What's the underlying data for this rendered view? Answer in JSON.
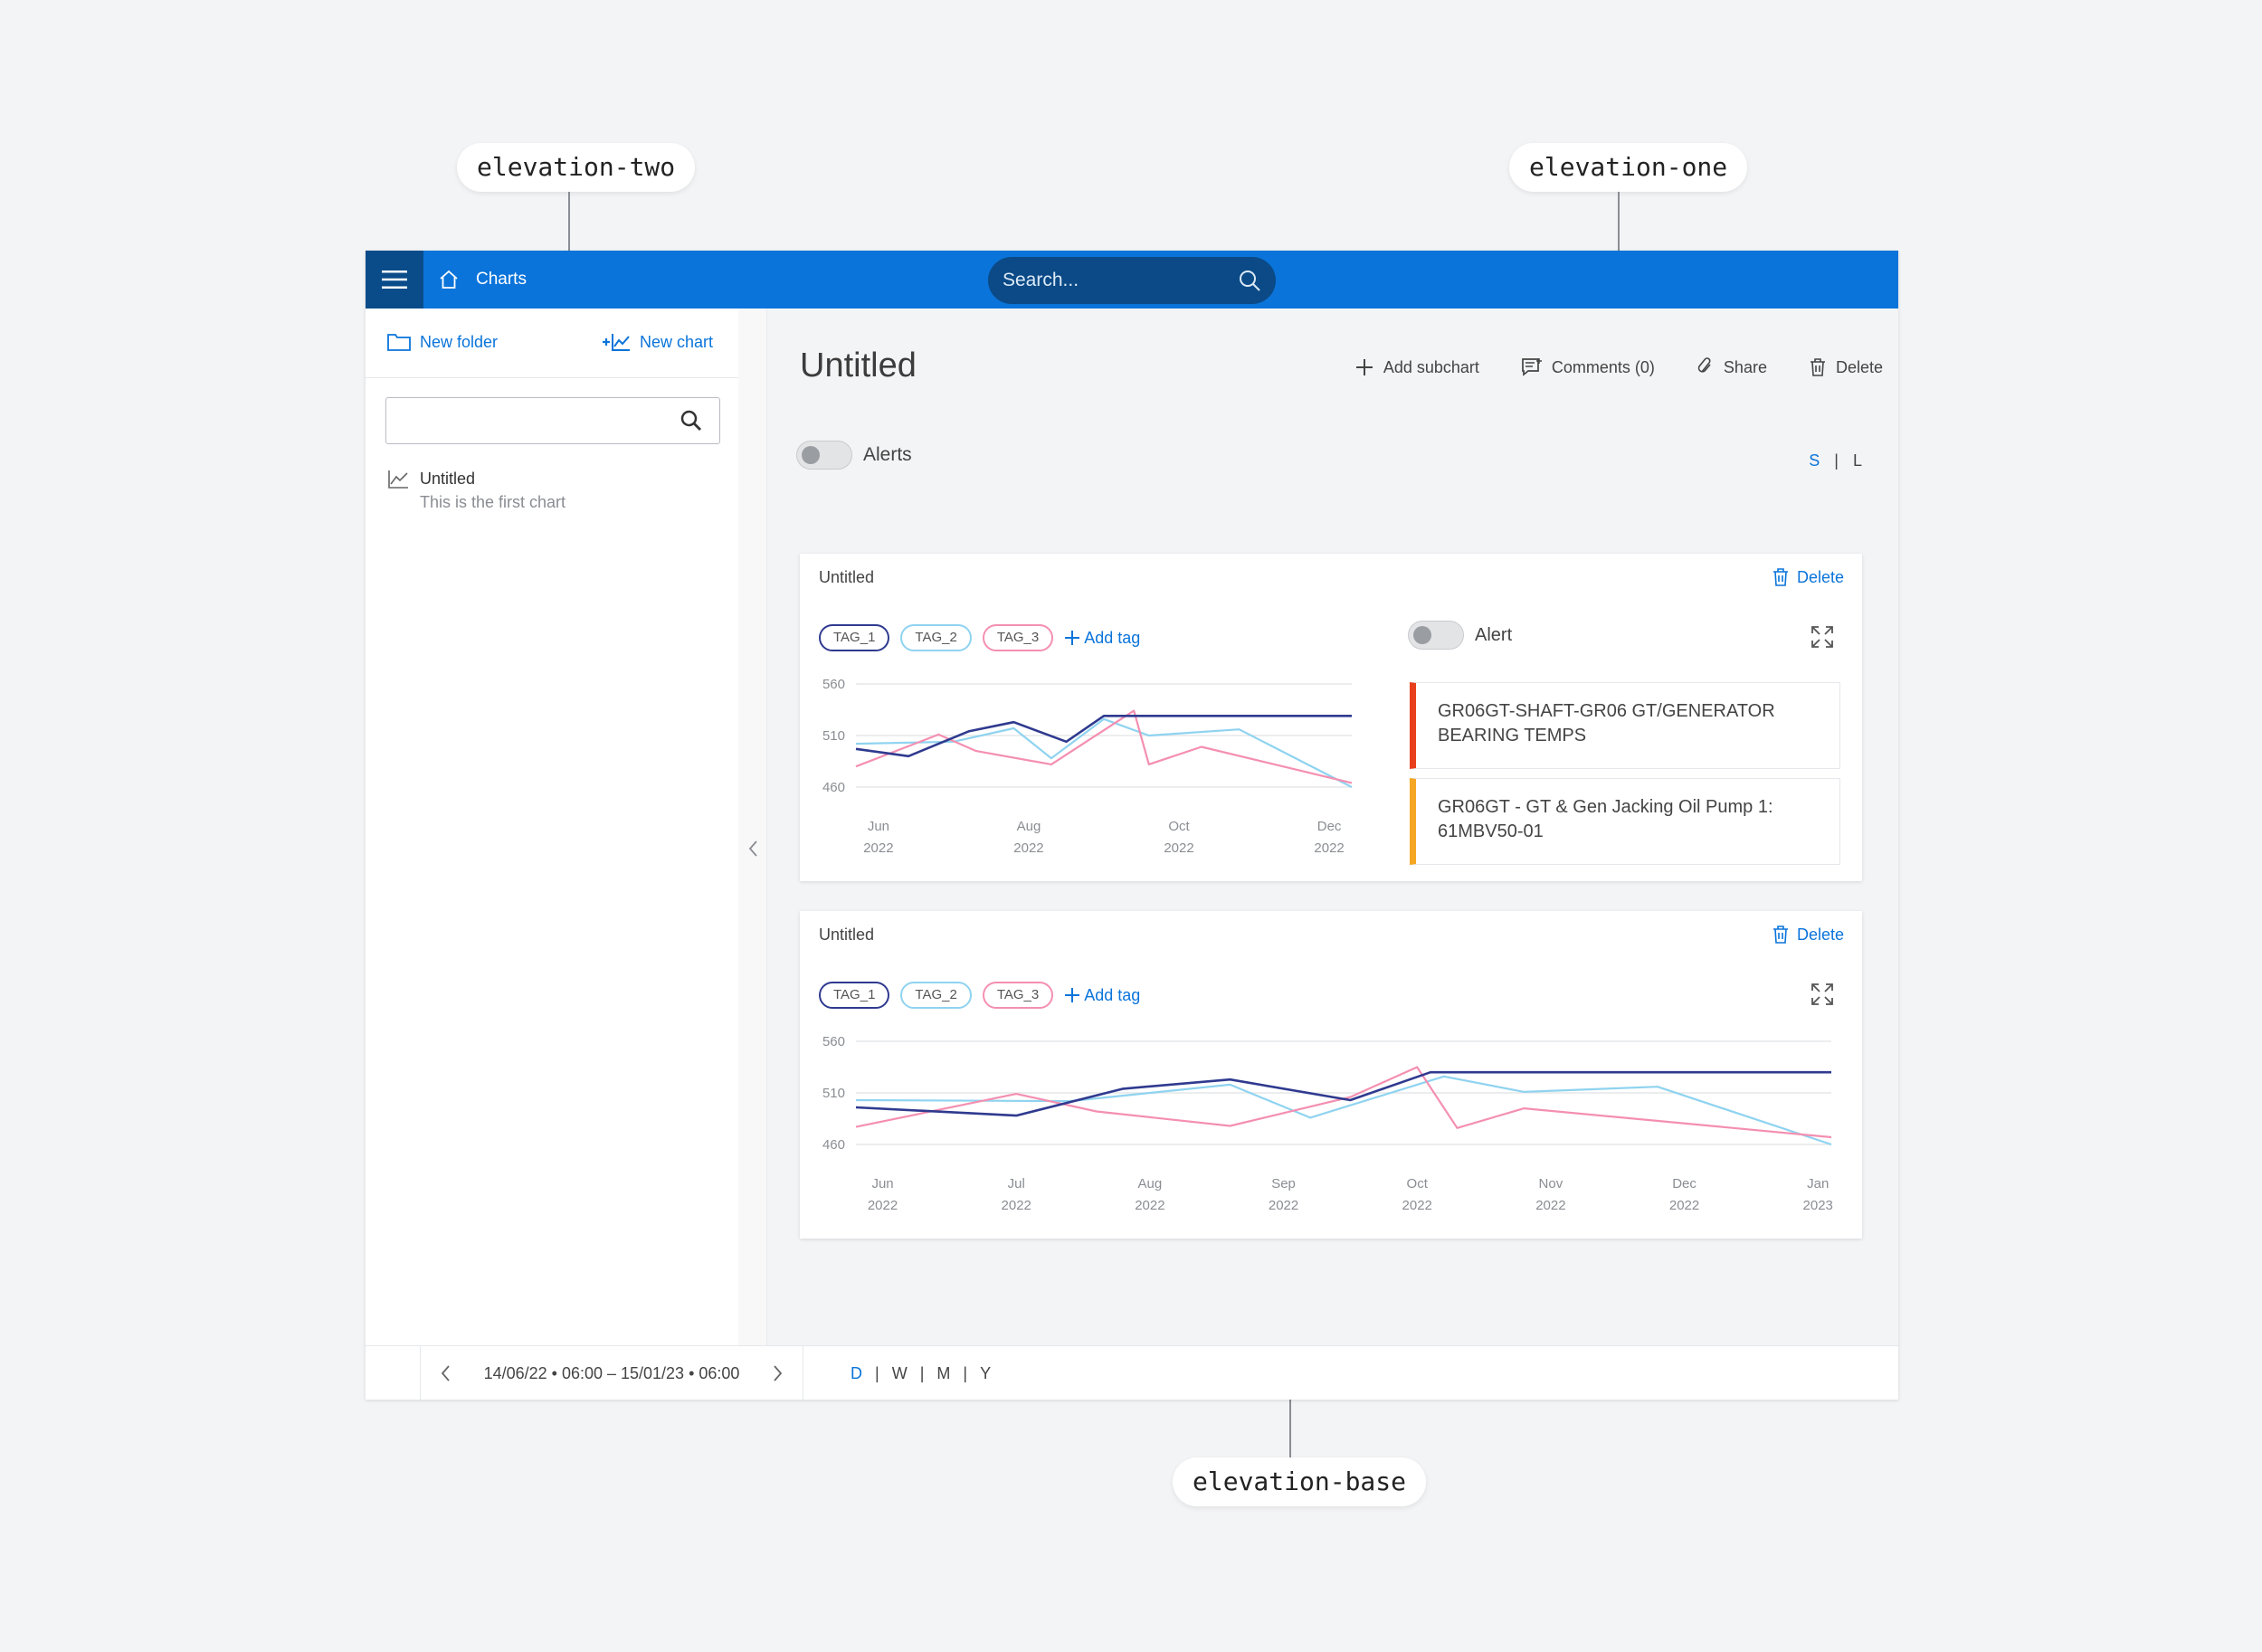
{
  "callouts": {
    "top_left": "elevation-two",
    "top_right": "elevation-one",
    "bottom": "elevation-base"
  },
  "header": {
    "breadcrumb": "Charts",
    "search_placeholder": "Search..."
  },
  "sidebar": {
    "new_folder": "New folder",
    "new_chart": "New chart",
    "items": [
      {
        "title": "Untitled",
        "subtitle": "This is the first chart"
      }
    ]
  },
  "main": {
    "title": "Untitled",
    "toolbar": {
      "add_subchart": "Add subchart",
      "comments": "Comments (0)",
      "share": "Share",
      "delete": "Delete"
    },
    "alerts_label": "Alerts",
    "size_options": [
      "S",
      "|",
      "L"
    ],
    "size_selected": "S"
  },
  "cards": [
    {
      "title": "Untitled",
      "delete_label": "Delete",
      "tags": [
        "TAG_1",
        "TAG_2",
        "TAG_3"
      ],
      "add_tag": "Add tag",
      "alert_label": "Alert",
      "alerts": [
        {
          "line1": "GR06GT-SHAFT-GR06 GT/GENERATOR",
          "line2": "BEARING TEMPS",
          "color": "#e8401c"
        },
        {
          "line1": "GR06GT - GT & Gen Jacking Oil Pump 1:",
          "line2": "61MBV50-01",
          "color": "#f5a623"
        }
      ]
    },
    {
      "title": "Untitled",
      "delete_label": "Delete",
      "tags": [
        "TAG_1",
        "TAG_2",
        "TAG_3"
      ],
      "add_tag": "Add tag"
    }
  ],
  "bottom": {
    "range": "14/06/22 • 06:00 – 15/01/23 • 06:00",
    "granularity": [
      "D",
      "|",
      "W",
      "|",
      "M",
      "|",
      "Y"
    ],
    "granularity_selected": "D"
  },
  "colors": {
    "primary": "#0a74da",
    "tag_1": "#2f3a8f",
    "tag_2": "#8fd3f0",
    "tag_3": "#f48fb1"
  },
  "chart_data": [
    {
      "type": "line",
      "y_ticks": [
        "560",
        "510",
        "460"
      ],
      "ylim": [
        460,
        560
      ],
      "x_ticks": [
        [
          "Jun",
          "2022"
        ],
        [
          "Aug",
          "2022"
        ],
        [
          "Oct",
          "2022"
        ],
        [
          "Dec",
          "2022"
        ]
      ],
      "x_positions": [
        0,
        2,
        4,
        6
      ],
      "xlim": [
        -0.3,
        6.3
      ],
      "series": [
        {
          "name": "TAG_1",
          "x": [
            -0.3,
            0.4,
            1.2,
            1.8,
            2.5,
            3.0,
            6.3
          ],
          "values": [
            497,
            490,
            514,
            523,
            504,
            529,
            529
          ]
        },
        {
          "name": "TAG_2",
          "x": [
            -0.3,
            1.0,
            1.8,
            2.3,
            3.0,
            3.6,
            4.8,
            6.3
          ],
          "values": [
            502,
            504,
            517,
            488,
            526,
            510,
            516,
            460
          ]
        },
        {
          "name": "TAG_3",
          "x": [
            -0.3,
            0.8,
            1.3,
            2.3,
            3.4,
            3.6,
            4.3,
            6.3
          ],
          "values": [
            480,
            511,
            495,
            482,
            534,
            482,
            499,
            464
          ]
        }
      ]
    },
    {
      "type": "line",
      "y_ticks": [
        "560",
        "510",
        "460"
      ],
      "ylim": [
        460,
        560
      ],
      "x_ticks": [
        [
          "Jun",
          "2022"
        ],
        [
          "Jul",
          "2022"
        ],
        [
          "Aug",
          "2022"
        ],
        [
          "Sep",
          "2022"
        ],
        [
          "Oct",
          "2022"
        ],
        [
          "Nov",
          "2022"
        ],
        [
          "Dec",
          "2022"
        ],
        [
          "Jan",
          "2023"
        ]
      ],
      "x_positions": [
        0,
        1,
        2,
        3,
        4,
        5,
        6,
        7
      ],
      "xlim": [
        -0.2,
        7.1
      ],
      "series": [
        {
          "name": "TAG_1",
          "x": [
            -0.2,
            1.0,
            1.8,
            2.6,
            3.5,
            4.1,
            7.1
          ],
          "values": [
            496,
            488,
            514,
            523,
            503,
            530,
            530
          ]
        },
        {
          "name": "TAG_2",
          "x": [
            -0.2,
            1.4,
            2.6,
            3.2,
            4.2,
            4.8,
            5.8,
            7.1
          ],
          "values": [
            503,
            502,
            518,
            486,
            526,
            511,
            516,
            460
          ]
        },
        {
          "name": "TAG_3",
          "x": [
            -0.2,
            1.0,
            1.6,
            2.6,
            3.5,
            4.0,
            4.3,
            4.8,
            7.1
          ],
          "values": [
            477,
            509,
            492,
            478,
            506,
            535,
            476,
            495,
            467
          ]
        }
      ]
    }
  ]
}
